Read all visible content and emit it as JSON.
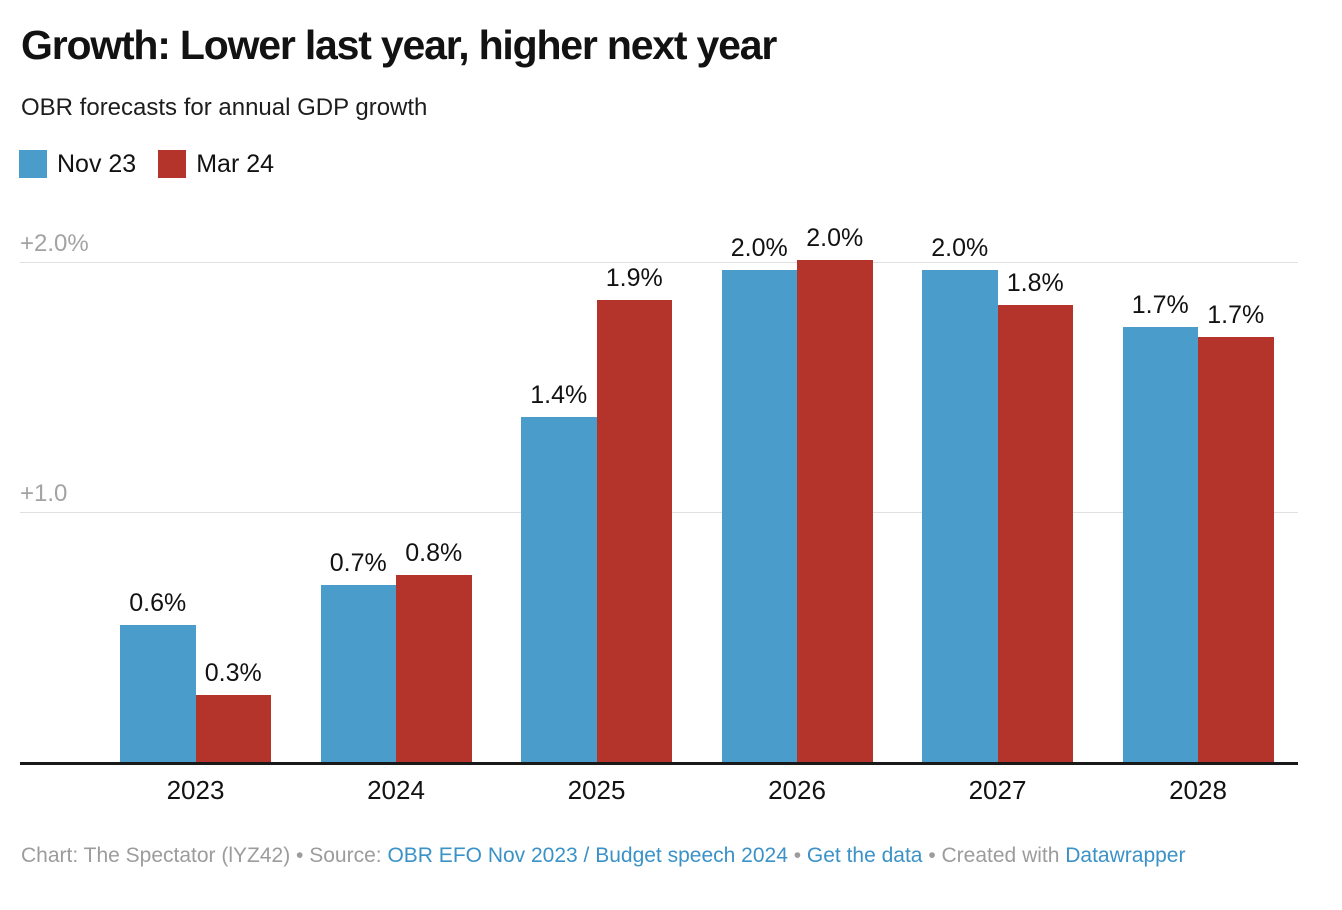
{
  "header": {
    "title": "Growth: Lower last year, higher next year",
    "subtitle": "OBR forecasts for annual GDP growth"
  },
  "legend": [
    {
      "label": "Nov 23",
      "color": "#4A9DCB"
    },
    {
      "label": "Mar 24",
      "color": "#B4332B"
    }
  ],
  "colors": {
    "series_blue": "#4A9DCB",
    "series_red": "#B4332B",
    "gridline": "#e0e0e0",
    "axis_baseline": "#191919",
    "tick_label": "#a3a3a3",
    "footer_text": "#9c9c9c",
    "footer_link": "#3A92C7"
  },
  "chart_data": {
    "type": "bar",
    "title": "Growth: Lower last year, higher next year",
    "subtitle": "OBR forecasts for annual GDP growth",
    "categories": [
      "2023",
      "2024",
      "2025",
      "2026",
      "2027",
      "2028"
    ],
    "series": [
      {
        "name": "Nov 23",
        "color": "#4A9DCB",
        "values": [
          0.6,
          0.7,
          1.4,
          2.0,
          2.0,
          1.7
        ],
        "labels": [
          "0.6%",
          "0.7%",
          "1.4%",
          "2.0%",
          "2.0%",
          "1.7%"
        ],
        "values_precise": [
          0.55,
          0.71,
          1.38,
          1.97,
          1.97,
          1.74
        ]
      },
      {
        "name": "Mar 24",
        "color": "#B4332B",
        "values": [
          0.3,
          0.8,
          1.9,
          2.0,
          1.8,
          1.7
        ],
        "labels": [
          "0.3%",
          "0.8%",
          "1.9%",
          "2.0%",
          "1.8%",
          "1.7%"
        ],
        "values_precise": [
          0.27,
          0.75,
          1.85,
          2.01,
          1.83,
          1.7
        ]
      }
    ],
    "xlabel": "",
    "ylabel": "",
    "ylim": [
      0,
      2.15
    ],
    "grid": true,
    "gridlines": [
      {
        "value": 2.0,
        "label": "+2.0%"
      },
      {
        "value": 1.0,
        "label": "+1.0"
      }
    ],
    "legend_position": "top-left",
    "value_labels_shown": true
  },
  "footer": {
    "segments": [
      {
        "text": "Chart: The Spectator (lYZ42) • Source: ",
        "link": false
      },
      {
        "text": "OBR EFO Nov 2023 / Budget speech 2024",
        "link": true
      },
      {
        "text": " • ",
        "link": false
      },
      {
        "text": "Get the data",
        "link": true
      },
      {
        "text": " • Created with ",
        "link": false
      },
      {
        "text": "Datawrapper",
        "link": true
      }
    ]
  }
}
